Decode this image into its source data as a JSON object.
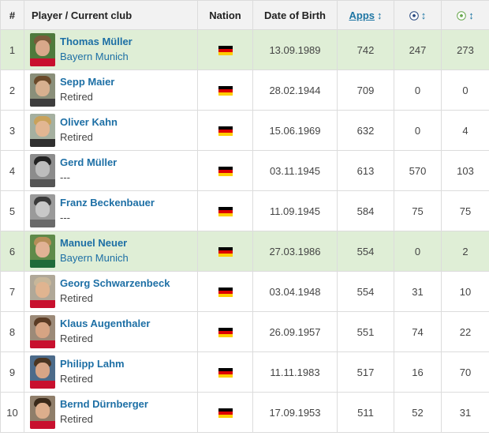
{
  "headers": {
    "num": "#",
    "player": "Player / Current club",
    "nation": "Nation",
    "dob": "Date of Birth",
    "apps": "Apps",
    "sort_icon": "↕"
  },
  "icons": {
    "sort": "sort-arrows-icon",
    "goals": "football-icon",
    "assists": "assist-ball-icon",
    "flag": "germany-flag-icon"
  },
  "colors": {
    "link": "#1d6fa5",
    "highlight_row": "#dfeed6",
    "header_bg": "#f2f2f2"
  },
  "rows": [
    {
      "num": "1",
      "name": "Thomas Müller",
      "club": "Bayern Munich",
      "nation": "Germany",
      "dob": "13.09.1989",
      "apps": "742",
      "goals": "247",
      "assists": "273",
      "highlight": true
    },
    {
      "num": "2",
      "name": "Sepp Maier",
      "club": "Retired",
      "nation": "Germany",
      "dob": "28.02.1944",
      "apps": "709",
      "goals": "0",
      "assists": "0",
      "highlight": false
    },
    {
      "num": "3",
      "name": "Oliver Kahn",
      "club": "Retired",
      "nation": "Germany",
      "dob": "15.06.1969",
      "apps": "632",
      "goals": "0",
      "assists": "4",
      "highlight": false
    },
    {
      "num": "4",
      "name": "Gerd Müller",
      "club": "---",
      "nation": "Germany",
      "dob": "03.11.1945",
      "apps": "613",
      "goals": "570",
      "assists": "103",
      "highlight": false
    },
    {
      "num": "5",
      "name": "Franz Beckenbauer",
      "club": "---",
      "nation": "Germany",
      "dob": "11.09.1945",
      "apps": "584",
      "goals": "75",
      "assists": "75",
      "highlight": false
    },
    {
      "num": "6",
      "name": "Manuel Neuer",
      "club": "Bayern Munich",
      "nation": "Germany",
      "dob": "27.03.1986",
      "apps": "554",
      "goals": "0",
      "assists": "2",
      "highlight": true
    },
    {
      "num": "7",
      "name": "Georg Schwarzenbeck",
      "club": "Retired",
      "nation": "Germany",
      "dob": "03.04.1948",
      "apps": "554",
      "goals": "31",
      "assists": "10",
      "highlight": false
    },
    {
      "num": "8",
      "name": "Klaus Augenthaler",
      "club": "Retired",
      "nation": "Germany",
      "dob": "26.09.1957",
      "apps": "551",
      "goals": "74",
      "assists": "22",
      "highlight": false
    },
    {
      "num": "9",
      "name": "Philipp Lahm",
      "club": "Retired",
      "nation": "Germany",
      "dob": "11.11.1983",
      "apps": "517",
      "goals": "16",
      "assists": "70",
      "highlight": false
    },
    {
      "num": "10",
      "name": "Bernd Dürnberger",
      "club": "Retired",
      "nation": "Germany",
      "dob": "17.09.1953",
      "apps": "511",
      "goals": "52",
      "assists": "31",
      "highlight": false
    }
  ]
}
